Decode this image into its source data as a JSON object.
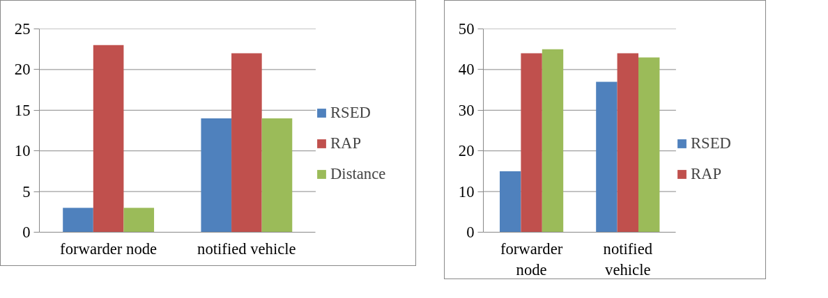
{
  "chart_data": [
    {
      "type": "bar",
      "categories": [
        "forwarder node",
        "notified vehicle"
      ],
      "ylim": [
        0,
        25
      ],
      "yticks": [
        0,
        5,
        10,
        15,
        20,
        25
      ],
      "grid": "y",
      "legend": "right",
      "series": [
        {
          "name": "RSED",
          "color": "#4f81bd",
          "values": [
            3,
            14
          ]
        },
        {
          "name": "RAP",
          "color": "#c0504d",
          "values": [
            23,
            22
          ]
        },
        {
          "name": "Distance",
          "color": "#9bbb59",
          "values": [
            3,
            14
          ]
        }
      ]
    },
    {
      "type": "bar",
      "categories": [
        "forwarder node",
        "notified vehicle"
      ],
      "ylim": [
        0,
        50
      ],
      "yticks": [
        0,
        10,
        20,
        30,
        40,
        50
      ],
      "grid": "y",
      "legend": "right",
      "series": [
        {
          "name": "RSED",
          "color": "#4f81bd",
          "values": [
            15,
            37
          ]
        },
        {
          "name": "RAP",
          "color": "#c0504d",
          "values": [
            44,
            44
          ]
        },
        {
          "color": "#9bbb59",
          "values": [
            45,
            43
          ]
        }
      ]
    }
  ]
}
